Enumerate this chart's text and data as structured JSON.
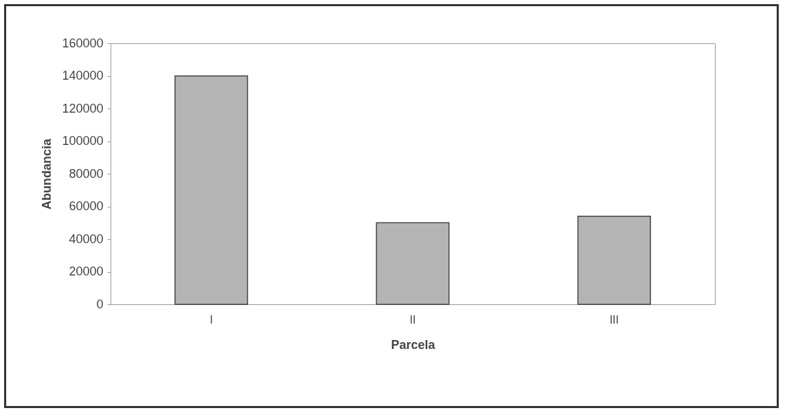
{
  "chart_data": {
    "type": "bar",
    "xlabel": "Parcela",
    "ylabel": "Abundancia",
    "categories": [
      "I",
      "II",
      "III"
    ],
    "series": [
      {
        "color": "#b4b4b4",
        "values": [
          140000,
          50000,
          54000
        ]
      }
    ],
    "ylim": [
      0,
      160000
    ],
    "yticks": [
      0,
      20000,
      40000,
      60000,
      80000,
      100000,
      120000,
      140000,
      160000
    ],
    "grid": false,
    "legend": false
  }
}
